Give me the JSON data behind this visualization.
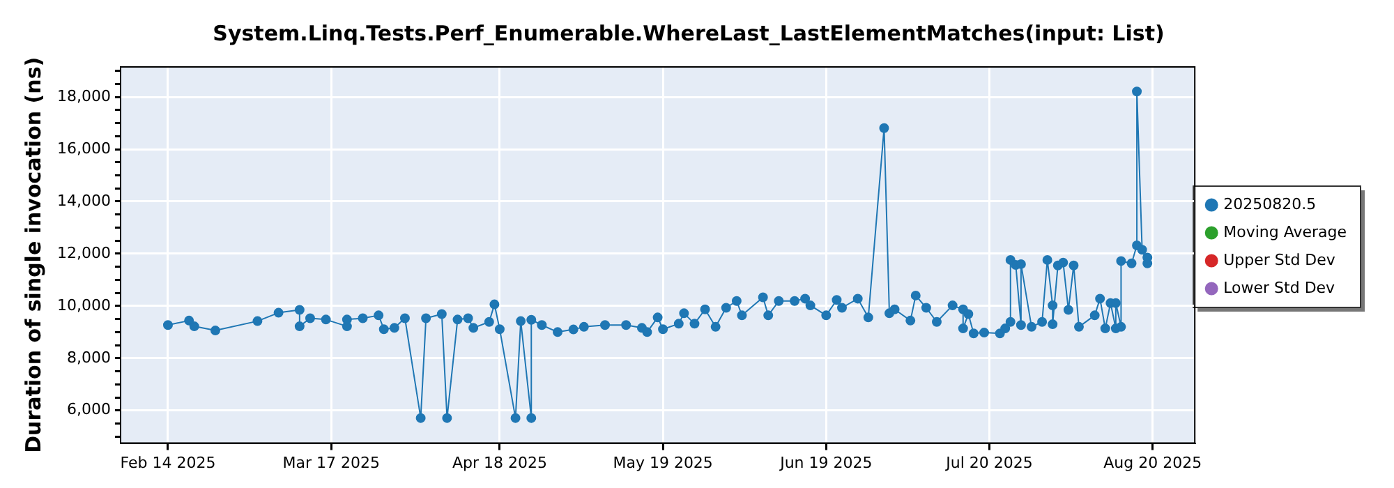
{
  "chart_data": {
    "type": "line",
    "title": "System.Linq.Tests.Perf_Enumerable.WhereLast_LastElementMatches(input: List)",
    "ylabel": "Duration of single invocation (ns)",
    "x": [
      "2025-02-14",
      "2025-02-18",
      "2025-02-19",
      "2025-02-23",
      "2025-03-03",
      "2025-03-07",
      "2025-03-11",
      "2025-03-11",
      "2025-03-13",
      "2025-03-16",
      "2025-03-20",
      "2025-03-20",
      "2025-03-23",
      "2025-03-26",
      "2025-03-27",
      "2025-03-29",
      "2025-03-31",
      "2025-04-03",
      "2025-04-04",
      "2025-04-07",
      "2025-04-08",
      "2025-04-10",
      "2025-04-12",
      "2025-04-13",
      "2025-04-16",
      "2025-04-17",
      "2025-04-18",
      "2025-04-21",
      "2025-04-22",
      "2025-04-24",
      "2025-04-24",
      "2025-04-26",
      "2025-04-29",
      "2025-05-02",
      "2025-05-04",
      "2025-05-08",
      "2025-05-12",
      "2025-05-15",
      "2025-05-16",
      "2025-05-18",
      "2025-05-19",
      "2025-05-22",
      "2025-05-23",
      "2025-05-25",
      "2025-05-27",
      "2025-05-29",
      "2025-05-31",
      "2025-06-02",
      "2025-06-03",
      "2025-06-07",
      "2025-06-08",
      "2025-06-10",
      "2025-06-13",
      "2025-06-15",
      "2025-06-16",
      "2025-06-19",
      "2025-06-21",
      "2025-06-22",
      "2025-06-25",
      "2025-06-27",
      "2025-06-30",
      "2025-07-01",
      "2025-07-02",
      "2025-07-05",
      "2025-07-06",
      "2025-07-08",
      "2025-07-10",
      "2025-07-13",
      "2025-07-15",
      "2025-07-15",
      "2025-07-16",
      "2025-07-17",
      "2025-07-19",
      "2025-07-22",
      "2025-07-23",
      "2025-07-24",
      "2025-07-24",
      "2025-07-25",
      "2025-07-26",
      "2025-07-26",
      "2025-07-28",
      "2025-07-30",
      "2025-07-31",
      "2025-08-01",
      "2025-08-01",
      "2025-08-02",
      "2025-08-03",
      "2025-08-04",
      "2025-08-05",
      "2025-08-06",
      "2025-08-09",
      "2025-08-10",
      "2025-08-11",
      "2025-08-12",
      "2025-08-13",
      "2025-08-13",
      "2025-08-14",
      "2025-08-14",
      "2025-08-16",
      "2025-08-17",
      "2025-08-17",
      "2025-08-18",
      "2025-08-19",
      "2025-08-19"
    ],
    "series": [
      {
        "name": "20250820.5",
        "color": "#1f77b4",
        "values": [
          9270,
          9440,
          9220,
          9060,
          9420,
          9740,
          9850,
          9220,
          9530,
          9480,
          9220,
          9480,
          9530,
          9640,
          9110,
          9160,
          9530,
          5710,
          9530,
          9690,
          5710,
          9480,
          9530,
          9160,
          9390,
          10060,
          9110,
          5710,
          9420,
          5710,
          9470,
          9270,
          9000,
          9100,
          9200,
          9270,
          9270,
          9160,
          9000,
          9560,
          9110,
          9320,
          9720,
          9320,
          9870,
          9200,
          9930,
          10190,
          9640,
          10330,
          9640,
          10190,
          10190,
          10280,
          10020,
          9640,
          10230,
          9930,
          10280,
          9560,
          16810,
          9720,
          9870,
          9440,
          10400,
          9930,
          9390,
          10020,
          9870,
          9140,
          9690,
          8950,
          8980,
          8950,
          9140,
          9390,
          11760,
          11570,
          9270,
          11600,
          9200,
          9390,
          11760,
          10020,
          9300,
          11550,
          11660,
          9850,
          11550,
          9200,
          9640,
          10280,
          9140,
          10110,
          9140,
          10110,
          9200,
          11720,
          11630,
          12320,
          18210,
          12150,
          11630,
          11850
        ]
      },
      {
        "name": "Moving Average",
        "color": "#2ca02c",
        "values": [
          null,
          null,
          null,
          null,
          null,
          null,
          null,
          null,
          null,
          null,
          null,
          null,
          null,
          null,
          null,
          null,
          null,
          null,
          null,
          null,
          null,
          null,
          null,
          null,
          null,
          null,
          null,
          null,
          null,
          null,
          null,
          null,
          null,
          null,
          null,
          null,
          null,
          null,
          null,
          null,
          null,
          null,
          null,
          null,
          null,
          null,
          null,
          null,
          null,
          null,
          null,
          null,
          null,
          null,
          null,
          null,
          null,
          null,
          null,
          null,
          null,
          null,
          null,
          null,
          null,
          null,
          null,
          null,
          null,
          null,
          null,
          null,
          null,
          null,
          null,
          null,
          null,
          null,
          null,
          null,
          null,
          null,
          null,
          null,
          null,
          null,
          null,
          null,
          null,
          null,
          null,
          null,
          null,
          null,
          null,
          null,
          null,
          null,
          null,
          null,
          null,
          null,
          null,
          null
        ]
      },
      {
        "name": "Upper Std Dev",
        "color": "#d62728",
        "values": [
          null,
          null,
          null,
          null,
          null,
          null,
          null,
          null,
          null,
          null,
          null,
          null,
          null,
          null,
          null,
          null,
          null,
          null,
          null,
          null,
          null,
          null,
          null,
          null,
          null,
          null,
          null,
          null,
          null,
          null,
          null,
          null,
          null,
          null,
          null,
          null,
          null,
          null,
          null,
          null,
          null,
          null,
          null,
          null,
          null,
          null,
          null,
          null,
          null,
          null,
          null,
          null,
          null,
          null,
          null,
          null,
          null,
          null,
          null,
          null,
          null,
          null,
          null,
          null,
          null,
          null,
          null,
          null,
          null,
          null,
          null,
          null,
          null,
          null,
          null,
          null,
          null,
          null,
          null,
          null,
          null,
          null,
          null,
          null,
          null,
          null,
          null,
          null,
          null,
          null,
          null,
          null,
          null,
          null,
          null,
          null,
          null,
          null,
          null,
          null,
          null,
          null,
          null,
          null
        ]
      },
      {
        "name": "Lower Std Dev",
        "color": "#9467bd",
        "values": [
          null,
          null,
          null,
          null,
          null,
          null,
          null,
          null,
          null,
          null,
          null,
          null,
          null,
          null,
          null,
          null,
          null,
          null,
          null,
          null,
          null,
          null,
          null,
          null,
          null,
          null,
          null,
          null,
          null,
          null,
          null,
          null,
          null,
          null,
          null,
          null,
          null,
          null,
          null,
          null,
          null,
          null,
          null,
          null,
          null,
          null,
          null,
          null,
          null,
          null,
          null,
          null,
          null,
          null,
          null,
          null,
          null,
          null,
          null,
          null,
          null,
          null,
          null,
          null,
          null,
          null,
          null,
          null,
          null,
          null,
          null,
          null,
          null,
          null,
          null,
          null,
          null,
          null,
          null,
          null,
          null,
          null,
          null,
          null,
          null,
          null,
          null,
          null,
          null,
          null,
          null,
          null,
          null,
          null,
          null,
          null,
          null,
          null,
          null,
          null,
          null,
          null,
          null,
          null
        ]
      }
    ],
    "xlim": [
      "2025-02-05",
      "2025-08-28"
    ],
    "xticks": [
      {
        "value": "2025-02-14",
        "label": "Feb 14 2025"
      },
      {
        "value": "2025-03-17",
        "label": "Mar 17 2025"
      },
      {
        "value": "2025-04-18",
        "label": "Apr 18 2025"
      },
      {
        "value": "2025-05-19",
        "label": "May 19 2025"
      },
      {
        "value": "2025-06-19",
        "label": "Jun 19 2025"
      },
      {
        "value": "2025-07-20",
        "label": "Jul 20 2025"
      },
      {
        "value": "2025-08-20",
        "label": "Aug 20 2025"
      }
    ],
    "ylim": [
      4750,
      19150
    ],
    "yticks": [
      {
        "value": 5000,
        "label": null
      },
      {
        "value": 5500,
        "label": null
      },
      {
        "value": 6000,
        "label": "6,000"
      },
      {
        "value": 6500,
        "label": null
      },
      {
        "value": 7000,
        "label": null
      },
      {
        "value": 7500,
        "label": null
      },
      {
        "value": 8000,
        "label": "8,000"
      },
      {
        "value": 8500,
        "label": null
      },
      {
        "value": 9000,
        "label": null
      },
      {
        "value": 9500,
        "label": null
      },
      {
        "value": 10000,
        "label": "10,000"
      },
      {
        "value": 10500,
        "label": null
      },
      {
        "value": 11000,
        "label": null
      },
      {
        "value": 11500,
        "label": null
      },
      {
        "value": 12000,
        "label": "12,000"
      },
      {
        "value": 12500,
        "label": null
      },
      {
        "value": 13000,
        "label": null
      },
      {
        "value": 13500,
        "label": null
      },
      {
        "value": 14000,
        "label": "14,000"
      },
      {
        "value": 14500,
        "label": null
      },
      {
        "value": 15000,
        "label": null
      },
      {
        "value": 15500,
        "label": null
      },
      {
        "value": 16000,
        "label": "16,000"
      },
      {
        "value": 16500,
        "label": null
      },
      {
        "value": 17000,
        "label": null
      },
      {
        "value": 17500,
        "label": null
      },
      {
        "value": 18000,
        "label": "18,000"
      },
      {
        "value": 18500,
        "label": null
      },
      {
        "value": 19000,
        "label": null
      }
    ],
    "grid": true,
    "legend": "right",
    "marker": "circle",
    "line_style": "solid"
  }
}
